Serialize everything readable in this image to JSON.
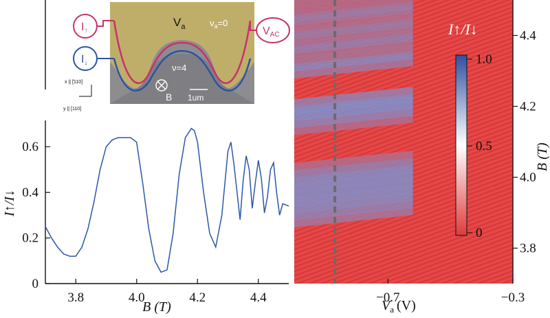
{
  "chart_data": [
    {
      "type": "line",
      "panel": "left",
      "xlabel": "B (T)",
      "ylabel": "I↑/I↓",
      "xlim": [
        3.7,
        4.5
      ],
      "ylim": [
        0,
        0.7
      ],
      "xticks": [
        "3.8",
        "4.0",
        "4.2",
        "4.4"
      ],
      "yticks": [
        "0",
        "0.2",
        "0.4",
        "0.6"
      ],
      "color": "#2a56a8",
      "series": [
        {
          "x": [
            3.7,
            3.72,
            3.74,
            3.76,
            3.78,
            3.8,
            3.82,
            3.84,
            3.86,
            3.88,
            3.9,
            3.92,
            3.94,
            3.96,
            3.98,
            4.0,
            4.02,
            4.04,
            4.06,
            4.08,
            4.1,
            4.12,
            4.14,
            4.16,
            4.18,
            4.19,
            4.2,
            4.22,
            4.24,
            4.26,
            4.28,
            4.3,
            4.31,
            4.32,
            4.34,
            4.35,
            4.36,
            4.37,
            4.38,
            4.39,
            4.4,
            4.41,
            4.42,
            4.43,
            4.44,
            4.45,
            4.46,
            4.47,
            4.48,
            4.5
          ],
          "y": [
            0.25,
            0.2,
            0.16,
            0.13,
            0.12,
            0.12,
            0.16,
            0.24,
            0.36,
            0.5,
            0.6,
            0.63,
            0.64,
            0.64,
            0.64,
            0.62,
            0.44,
            0.24,
            0.1,
            0.05,
            0.06,
            0.22,
            0.48,
            0.64,
            0.68,
            0.67,
            0.62,
            0.4,
            0.22,
            0.16,
            0.3,
            0.58,
            0.62,
            0.52,
            0.28,
            0.45,
            0.56,
            0.5,
            0.33,
            0.44,
            0.54,
            0.46,
            0.31,
            0.38,
            0.5,
            0.53,
            0.4,
            0.3,
            0.35,
            0.34
          ]
        }
      ]
    },
    {
      "type": "heatmap",
      "panel": "right",
      "xlabel": "V",
      "xlabel_sub": "a",
      "xlabel_unit": "(V)",
      "ylabel": "B (T)",
      "xlim": [
        -1.0,
        -0.3
      ],
      "ylim": [
        3.7,
        4.5
      ],
      "xticks": [
        "−0.7",
        "−0.3"
      ],
      "yticks": [
        "3.8",
        "4.0",
        "4.2",
        "4.4"
      ],
      "colorbar": {
        "label": "I↑/I↓",
        "ticks": [
          "1.0",
          "0.5",
          "0"
        ],
        "range": [
          0,
          1.0
        ],
        "colors": [
          "#e03a3a",
          "#ffffff",
          "#2f4fa0"
        ]
      },
      "dashed_line_at_Va": -0.87
    }
  ],
  "inset": {
    "labels": {
      "va_region": "V",
      "va_region_sub": "a",
      "nu_a": "ν",
      "nu_a_sub": "a",
      "nu_a_value": "=0",
      "nu_bulk": "ν=4",
      "i_up": "I",
      "i_up_sub": "↑",
      "i_down": "I",
      "i_down_sub": "↓",
      "vac": "V",
      "vac_sub": "AC",
      "field": "B",
      "scale": "1um",
      "axis_x": "x || [̄110]",
      "axis_y": "y || [110]"
    }
  }
}
